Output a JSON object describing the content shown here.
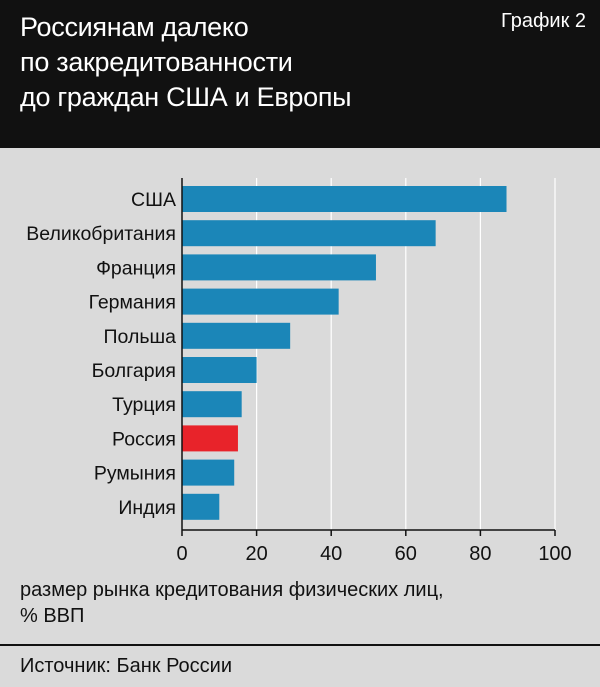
{
  "title_lines": [
    "Россиянам далеко",
    "по закредитованности",
    "до граждан США и Европы"
  ],
  "badge": "График 2",
  "xlabel_lines": [
    "размер рынка кредитования физических лиц,",
    "% ВВП"
  ],
  "source": "Источник: Банк России",
  "colors": {
    "bar": "#1b86b8",
    "highlight": "#e8232a",
    "header_bg": "#111111"
  },
  "chart_data": {
    "type": "bar",
    "orientation": "horizontal",
    "categories": [
      "США",
      "Великобритания",
      "Франция",
      "Германия",
      "Польша",
      "Болгария",
      "Турция",
      "Россия",
      "Румыния",
      "Индия"
    ],
    "values": [
      87,
      68,
      52,
      42,
      29,
      20,
      16,
      15,
      14,
      10
    ],
    "highlight": "Россия",
    "xlim": [
      0,
      100
    ],
    "xticks": [
      0,
      20,
      40,
      60,
      80,
      100
    ],
    "xlabel": "размер рынка кредитования физических лиц, % ВВП",
    "grid": true
  }
}
